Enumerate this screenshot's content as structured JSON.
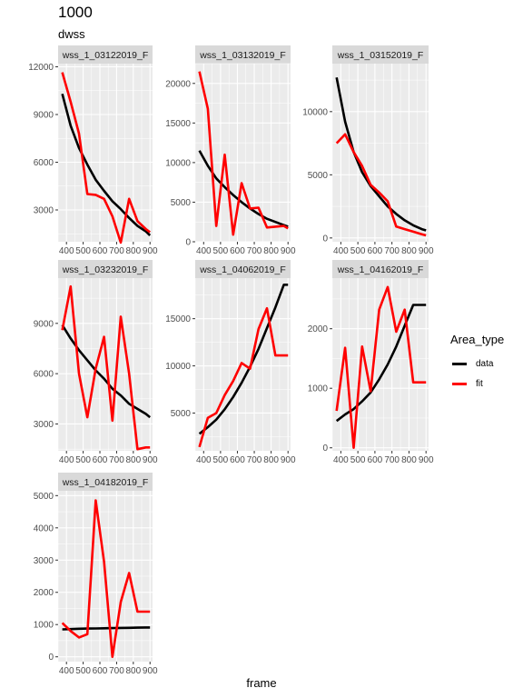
{
  "title": "1000",
  "subtitle": "dwss",
  "xlabel": "frame",
  "legend": {
    "title": "Area_type",
    "items": [
      {
        "label": "data",
        "color": "#000000"
      },
      {
        "label": "fit",
        "color": "#ff0000"
      }
    ]
  },
  "chart_data": {
    "type": "line",
    "x_ticks": [
      "400",
      "500",
      "600",
      "700",
      "800",
      "900"
    ],
    "xlim": [
      350,
      915
    ],
    "panels": [
      {
        "strip": "wss_1_03122019_F",
        "ylim": [
          1000,
          12200
        ],
        "y_ticks": [
          3000,
          6000,
          9000,
          12000
        ],
        "y_tick_labels": [
          "3000",
          "6000",
          "9000",
          "12000"
        ],
        "series": [
          {
            "name": "data",
            "x": [
              375,
              425,
              475,
              525,
              575,
              625,
              675,
              725,
              775,
              825,
              875,
              900
            ],
            "y": [
              10300,
              8300,
              6900,
              5850,
              4900,
              4200,
              3550,
              3050,
              2500,
              2000,
              1650,
              1400
            ]
          },
          {
            "name": "fit",
            "x": [
              375,
              425,
              475,
              525,
              575,
              625,
              675,
              725,
              775,
              825,
              875,
              900
            ],
            "y": [
              11650,
              9800,
              7800,
              4000,
              3950,
              3700,
              2600,
              950,
              3700,
              2300,
              1800,
              1600
            ]
          }
        ]
      },
      {
        "strip": "wss_1_03132019_F",
        "ylim": [
          0,
          22500
        ],
        "y_ticks": [
          0,
          5000,
          10000,
          15000,
          20000
        ],
        "y_tick_labels": [
          "0",
          "5000",
          "10000",
          "15000",
          "20000"
        ],
        "series": [
          {
            "name": "data",
            "x": [
              375,
              425,
              475,
              525,
              575,
              625,
              675,
              725,
              775,
              825,
              875,
              900
            ],
            "y": [
              11500,
              9600,
              8000,
              6900,
              5900,
              5000,
              4200,
              3500,
              2900,
              2500,
              2100,
              1900
            ]
          },
          {
            "name": "fit",
            "x": [
              375,
              425,
              475,
              525,
              575,
              625,
              675,
              725,
              775,
              825,
              875,
              900
            ],
            "y": [
              21500,
              16800,
              2000,
              11000,
              900,
              7400,
              4200,
              4300,
              1800,
              1900,
              2000,
              1700
            ]
          }
        ]
      },
      {
        "strip": "wss_1_03152019_F",
        "ylim": [
          -300,
          13800
        ],
        "y_ticks": [
          0,
          5000,
          10000
        ],
        "y_tick_labels": [
          "0",
          "5000",
          "10000"
        ],
        "series": [
          {
            "name": "data",
            "x": [
              375,
              425,
              475,
              525,
              575,
              625,
              675,
              725,
              775,
              825,
              875,
              900
            ],
            "y": [
              12700,
              9200,
              6800,
              5200,
              4100,
              3300,
              2500,
              1900,
              1400,
              1000,
              700,
              600
            ]
          },
          {
            "name": "fit",
            "x": [
              375,
              425,
              475,
              525,
              575,
              625,
              675,
              725,
              775,
              825,
              875,
              900
            ],
            "y": [
              7500,
              8200,
              6800,
              5700,
              4200,
              3600,
              2900,
              900,
              700,
              500,
              300,
              200
            ]
          }
        ]
      },
      {
        "strip": "wss_1_03232019_F",
        "ylim": [
          1400,
          11700
        ],
        "y_ticks": [
          3000,
          6000,
          9000
        ],
        "y_tick_labels": [
          "3000",
          "6000",
          "9000"
        ],
        "series": [
          {
            "name": "data",
            "x": [
              375,
              425,
              475,
              525,
              575,
              625,
              675,
              725,
              775,
              825,
              875,
              900
            ],
            "y": [
              8900,
              8100,
              7400,
              6800,
              6200,
              5700,
              5100,
              4700,
              4200,
              3900,
              3600,
              3400
            ]
          },
          {
            "name": "fit",
            "x": [
              375,
              425,
              475,
              525,
              575,
              625,
              675,
              725,
              775,
              825,
              875,
              900
            ],
            "y": [
              8600,
              11200,
              6000,
              3400,
              6300,
              8200,
              3200,
              9400,
              6000,
              1500,
              1600,
              1600
            ]
          }
        ]
      },
      {
        "strip": "wss_1_04062019_F",
        "ylim": [
          1000,
          19300
        ],
        "y_ticks": [
          5000,
          10000,
          15000
        ],
        "y_tick_labels": [
          "5000",
          "10000",
          "15000"
        ],
        "series": [
          {
            "name": "data",
            "x": [
              375,
              425,
              475,
              525,
              575,
              625,
              675,
              725,
              775,
              825,
              875,
              900
            ],
            "y": [
              2800,
              3500,
              4300,
              5400,
              6700,
              8200,
              9900,
              11800,
              14000,
              16200,
              18600,
              18600
            ]
          },
          {
            "name": "fit",
            "x": [
              375,
              425,
              475,
              525,
              575,
              625,
              675,
              725,
              775,
              825,
              875,
              900
            ],
            "y": [
              1400,
              4500,
              5000,
              6900,
              8400,
              10300,
              9700,
              13900,
              16100,
              11100,
              11100,
              11100
            ]
          }
        ]
      },
      {
        "strip": "wss_1_04162019_F",
        "ylim": [
          -50,
          2850
        ],
        "y_ticks": [
          0,
          1000,
          2000
        ],
        "y_tick_labels": [
          "0",
          "1000",
          "2000"
        ],
        "series": [
          {
            "name": "data",
            "x": [
              375,
              425,
              475,
              525,
              575,
              625,
              675,
              725,
              775,
              825,
              875,
              900
            ],
            "y": [
              450,
              560,
              650,
              780,
              930,
              1150,
              1400,
              1700,
              2050,
              2400,
              2400,
              2400
            ]
          },
          {
            "name": "fit",
            "x": [
              375,
              425,
              475,
              525,
              575,
              625,
              675,
              725,
              775,
              825,
              875,
              900
            ],
            "y": [
              620,
              1680,
              0,
              1700,
              950,
              2320,
              2700,
              1950,
              2320,
              1100,
              1100,
              1100
            ]
          }
        ]
      },
      {
        "strip": "wss_1_04182019_F",
        "ylim": [
          -150,
          5150
        ],
        "y_ticks": [
          0,
          1000,
          2000,
          3000,
          4000,
          5000
        ],
        "y_tick_labels": [
          "0",
          "1000",
          "2000",
          "3000",
          "4000",
          "5000"
        ],
        "series": [
          {
            "name": "data",
            "x": [
              375,
              425,
              475,
              525,
              575,
              625,
              675,
              725,
              775,
              825,
              875,
              900
            ],
            "y": [
              850,
              860,
              870,
              875,
              880,
              885,
              890,
              895,
              900,
              905,
              910,
              910
            ]
          },
          {
            "name": "fit",
            "x": [
              375,
              425,
              475,
              525,
              575,
              625,
              675,
              725,
              775,
              825,
              875,
              900
            ],
            "y": [
              1050,
              800,
              600,
              700,
              4850,
              2950,
              0,
              1700,
              2600,
              1400,
              1400,
              1400
            ]
          }
        ]
      }
    ]
  }
}
